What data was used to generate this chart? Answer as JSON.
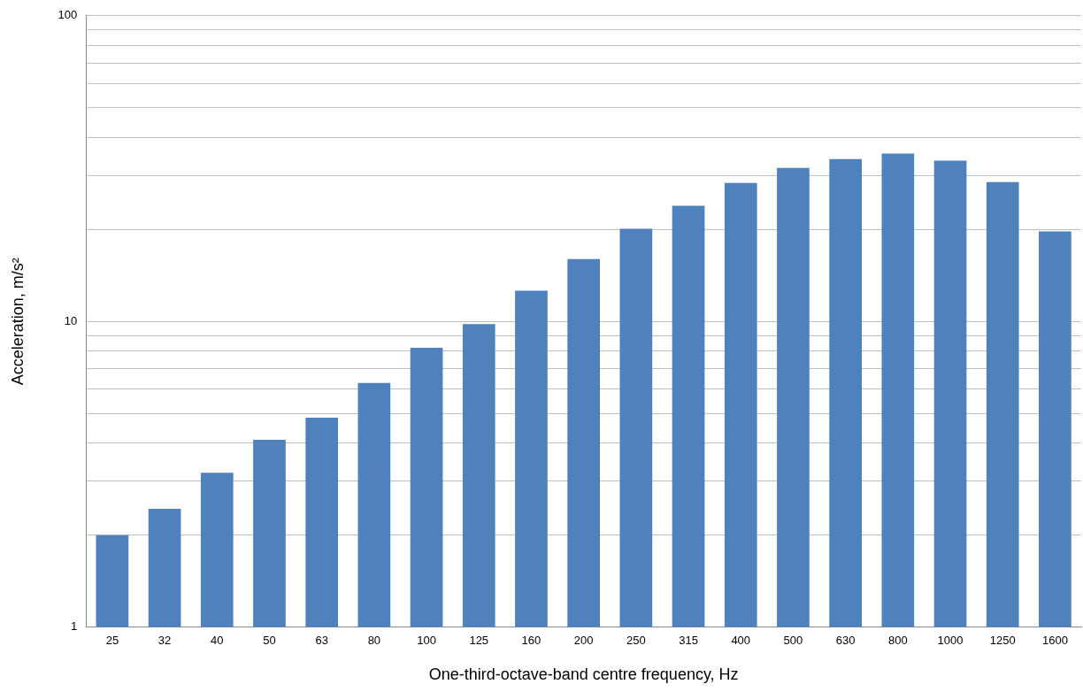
{
  "chart_data": {
    "type": "bar",
    "xlabel": "One-third-octave-band centre frequency, Hz",
    "ylabel": "Acceleration, m/s²",
    "categories": [
      "25",
      "32",
      "40",
      "50",
      "63",
      "80",
      "100",
      "125",
      "160",
      "200",
      "250",
      "315",
      "400",
      "500",
      "630",
      "800",
      "1000",
      "1250",
      "1600"
    ],
    "values": [
      2.0,
      2.44,
      3.2,
      4.1,
      4.85,
      6.3,
      8.2,
      9.8,
      12.6,
      16.0,
      20.1,
      23.9,
      28.4,
      31.8,
      34.0,
      35.4,
      33.6,
      28.6,
      19.7
    ],
    "color": "#4f81bd",
    "log": "y",
    "ylim": [
      1,
      100
    ],
    "yticks": [
      1,
      {
        "value": 2,
        "label": null
      },
      {
        "value": 3,
        "label": null
      },
      {
        "value": 4,
        "label": null
      },
      {
        "value": 5,
        "label": null
      },
      {
        "value": 6,
        "label": null
      },
      {
        "value": 7,
        "label": null
      },
      {
        "value": 8,
        "label": null
      },
      {
        "value": 9,
        "label": null
      },
      10,
      {
        "value": 20,
        "label": null
      },
      {
        "value": 30,
        "label": null
      },
      {
        "value": 40,
        "label": null
      },
      {
        "value": 50,
        "label": null
      },
      {
        "value": 60,
        "label": null
      },
      {
        "value": 70,
        "label": null
      },
      {
        "value": 80,
        "label": null
      },
      {
        "value": 90,
        "label": null
      },
      100
    ],
    "grid": "y",
    "legend": false
  }
}
